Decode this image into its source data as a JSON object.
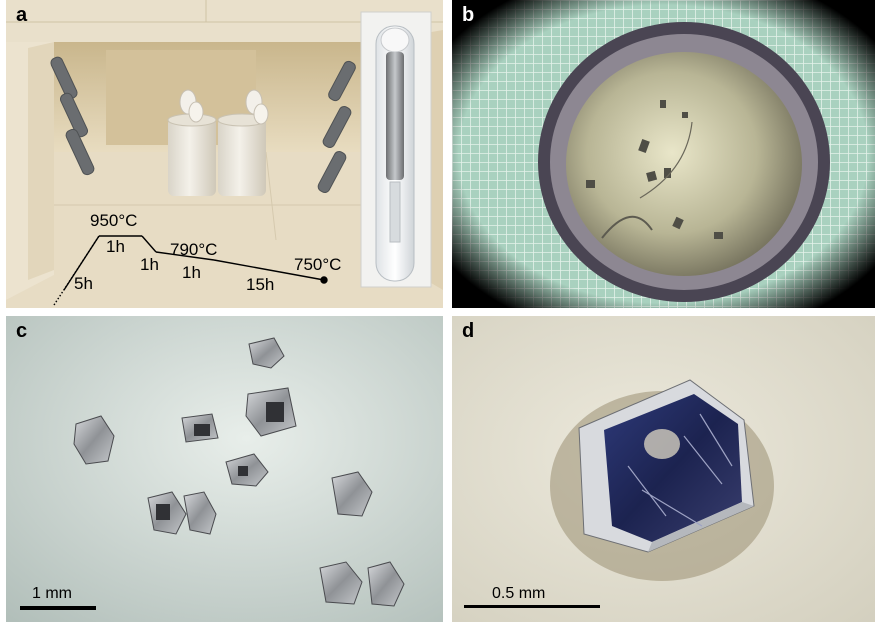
{
  "panels": {
    "a": {
      "label": "a",
      "temperatures": [
        "950°C",
        "790°C",
        "750°C"
      ],
      "durations": [
        "5h",
        "1h",
        "1h",
        "1h",
        "15h"
      ]
    },
    "b": {
      "label": "b"
    },
    "c": {
      "label": "c",
      "scale_bar": "1 mm"
    },
    "d": {
      "label": "d",
      "scale_bar": "0.5 mm"
    }
  },
  "colors": {
    "furnace_brick": "#d8c9a6",
    "grid_background": "#9cc7b4",
    "crystal_silver": "#b9bcc0",
    "cream_background": "#eae6d6"
  }
}
